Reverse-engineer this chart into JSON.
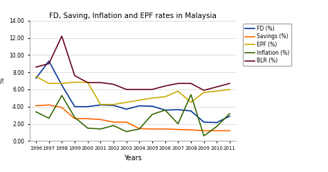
{
  "title": "FD, Saving, Inflation and EPF rates in Malaysia",
  "xlabel": "Years",
  "ylabel": "%",
  "years": [
    1996,
    1997,
    1998,
    1999,
    2000,
    2001,
    2002,
    2003,
    2004,
    2005,
    2006,
    2007,
    2008,
    2009,
    2010,
    2011
  ],
  "FD": [
    7.3,
    9.3,
    6.5,
    4.0,
    4.0,
    4.2,
    4.15,
    3.7,
    4.1,
    4.05,
    3.6,
    3.65,
    3.5,
    2.2,
    2.15,
    2.9
  ],
  "Savings": [
    4.1,
    4.2,
    3.9,
    2.6,
    2.6,
    2.5,
    2.2,
    2.2,
    1.45,
    1.4,
    1.4,
    1.35,
    1.3,
    1.2,
    1.2,
    1.2
  ],
  "EPF": [
    7.5,
    6.7,
    6.7,
    6.84,
    6.84,
    4.25,
    4.25,
    4.5,
    4.75,
    5.0,
    5.15,
    5.8,
    4.5,
    5.65,
    5.8,
    6.0
  ],
  "Inflation": [
    3.4,
    2.65,
    5.3,
    2.75,
    1.5,
    1.4,
    1.8,
    1.1,
    1.4,
    3.1,
    3.6,
    2.0,
    5.4,
    0.6,
    1.7,
    3.2
  ],
  "BLR": [
    8.6,
    9.0,
    12.2,
    7.6,
    6.8,
    6.8,
    6.6,
    6.0,
    6.0,
    6.0,
    6.4,
    6.7,
    6.7,
    5.9,
    6.3,
    6.7
  ],
  "series_colors": {
    "FD (%)": "#003399",
    "Savings (%)": "#FF6600",
    "EPF (%)": "#CCAA00",
    "Inflation (%)": "#336600",
    "BLR (%)": "#660022"
  },
  "ylim": [
    0,
    14.0
  ],
  "yticks": [
    0.0,
    2.0,
    4.0,
    6.0,
    8.0,
    10.0,
    12.0,
    14.0
  ],
  "bg_color": "#ffffff",
  "grid_color": "#d0d0d0"
}
